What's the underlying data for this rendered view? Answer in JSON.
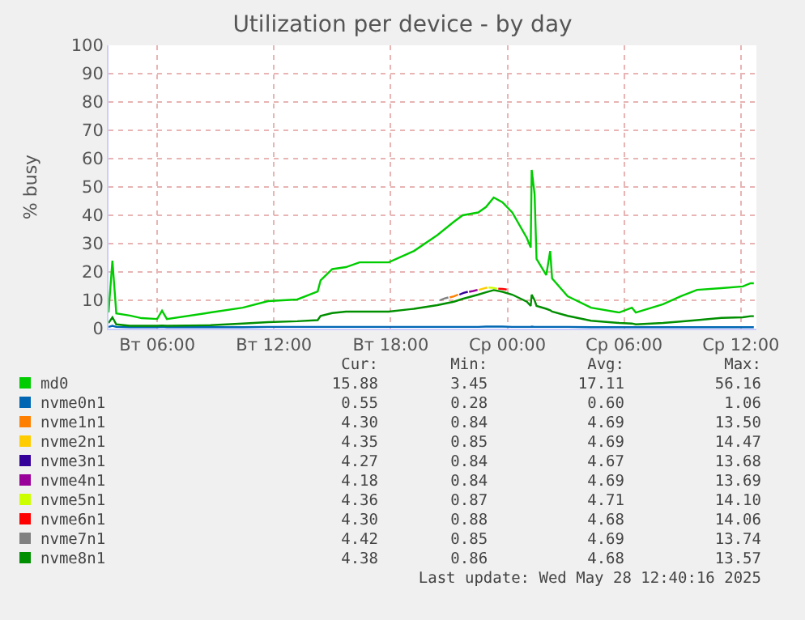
{
  "chart_data": {
    "type": "line",
    "title": "Utilization per device - by day",
    "ylabel": "% busy",
    "xlim": [
      "2025-05-27T03:30",
      "2025-05-28T12:48"
    ],
    "xticks": [
      {
        "value": "2025-05-27T06:00",
        "label": "Вт 06:00"
      },
      {
        "value": "2025-05-27T12:00",
        "label": "Вт 12:00"
      },
      {
        "value": "2025-05-27T18:00",
        "label": "Вт 18:00"
      },
      {
        "value": "2025-05-28T00:00",
        "label": "Ср 00:00"
      },
      {
        "value": "2025-05-28T06:00",
        "label": "Ср 06:00"
      },
      {
        "value": "2025-05-28T12:00",
        "label": "Ср 12:00"
      }
    ],
    "ylim": [
      0,
      100
    ],
    "yticks": [
      0,
      10,
      20,
      30,
      40,
      50,
      60,
      70,
      80,
      90,
      100
    ],
    "grid": true,
    "legend": "bottom",
    "marker": "none",
    "line_style": "solid",
    "x": [
      "2025-05-27T03:30",
      "2025-05-27T03:42",
      "2025-05-27T03:54",
      "2025-05-27T04:36",
      "2025-05-27T05:12",
      "2025-05-27T06:00",
      "2025-05-27T06:15",
      "2025-05-27T06:30",
      "2025-05-27T08:45",
      "2025-05-27T10:24",
      "2025-05-27T11:42",
      "2025-05-27T13:12",
      "2025-05-27T14:15",
      "2025-05-27T14:24",
      "2025-05-27T15:00",
      "2025-05-27T15:42",
      "2025-05-27T16:24",
      "2025-05-27T17:54",
      "2025-05-27T19:12",
      "2025-05-27T20:24",
      "2025-05-27T21:15",
      "2025-05-27T21:42",
      "2025-05-27T22:30",
      "2025-05-27T22:54",
      "2025-05-27T23:18",
      "2025-05-27T23:45",
      "2025-05-28T00:15",
      "2025-05-28T01:00",
      "2025-05-28T01:12",
      "2025-05-28T01:15",
      "2025-05-28T01:24",
      "2025-05-28T01:30",
      "2025-05-28T02:00",
      "2025-05-28T02:12",
      "2025-05-28T02:18",
      "2025-05-28T03:06",
      "2025-05-28T04:18",
      "2025-05-28T05:45",
      "2025-05-28T06:24",
      "2025-05-28T06:36",
      "2025-05-28T08:00",
      "2025-05-28T08:54",
      "2025-05-28T09:45",
      "2025-05-28T11:00",
      "2025-05-28T12:06",
      "2025-05-28T12:30",
      "2025-05-28T12:40"
    ],
    "series": [
      {
        "name": "md0",
        "color": "#00cc00",
        "values": [
          5.7,
          24,
          5.4,
          4.6,
          3.7,
          3.4,
          6.3,
          3.4,
          5.7,
          7.4,
          9.7,
          10.3,
          13.1,
          17,
          21,
          21.7,
          23.4,
          23.4,
          27.4,
          33,
          37.7,
          40,
          41,
          42.9,
          46.3,
          44.6,
          41,
          32,
          28.6,
          56,
          47.4,
          24.6,
          18.9,
          27.4,
          17.7,
          11.4,
          7.4,
          5.7,
          7.4,
          5.7,
          8.6,
          11.4,
          13.7,
          14.3,
          14.9,
          16,
          16
        ]
      },
      {
        "name": "nvme0n1",
        "color": "#0066b3",
        "values": [
          0.6,
          1,
          0.6,
          0.5,
          0.5,
          0.5,
          0.6,
          0.5,
          0.5,
          0.5,
          0.6,
          0.6,
          0.6,
          0.6,
          0.6,
          0.6,
          0.6,
          0.6,
          0.6,
          0.6,
          0.6,
          0.6,
          0.6,
          0.7,
          0.7,
          0.7,
          0.6,
          0.6,
          0.6,
          0.7,
          0.6,
          0.6,
          0.6,
          0.6,
          0.6,
          0.6,
          0.5,
          0.5,
          0.5,
          0.5,
          0.5,
          0.5,
          0.5,
          0.5,
          0.5,
          0.5,
          0.5
        ]
      },
      {
        "name": "nvme1n1",
        "color": "#ff8000",
        "x": [
          "2025-05-27T21:02",
          "2025-05-27T21:15",
          "2025-05-27T21:28"
        ],
        "values": [
          11,
          11.4,
          12
        ]
      },
      {
        "name": "nvme2n1",
        "color": "#ffcc00",
        "x": [
          "2025-05-27T22:32",
          "2025-05-27T22:45",
          "2025-05-27T22:58"
        ],
        "values": [
          13.7,
          14.1,
          14.5
        ]
      },
      {
        "name": "nvme3n1",
        "color": "#330099",
        "x": [
          "2025-05-27T21:32",
          "2025-05-27T21:45",
          "2025-05-27T21:58"
        ],
        "values": [
          12,
          12.6,
          13
        ]
      },
      {
        "name": "nvme4n1",
        "color": "#990099",
        "x": [
          "2025-05-27T22:02",
          "2025-05-27T22:15",
          "2025-05-27T22:28"
        ],
        "values": [
          13,
          13.3,
          13.7
        ]
      },
      {
        "name": "nvme5n1",
        "color": "#ccff00",
        "x": [
          "2025-05-27T23:02",
          "2025-05-27T23:15",
          "2025-05-27T23:28"
        ],
        "values": [
          14.5,
          14.4,
          14.1
        ]
      },
      {
        "name": "nvme6n1",
        "color": "#ff0000",
        "x": [
          "2025-05-27T23:32",
          "2025-05-27T23:45",
          "2025-05-27T23:58"
        ],
        "values": [
          14.1,
          14,
          13.8
        ]
      },
      {
        "name": "nvme7n1",
        "color": "#808080",
        "x": [
          "2025-05-27T20:32",
          "2025-05-27T20:45",
          "2025-05-27T20:58"
        ],
        "values": [
          10,
          10.6,
          11
        ]
      },
      {
        "name": "nvme8n1",
        "color": "#008f00",
        "values": [
          2,
          4,
          1.5,
          1,
          1,
          1,
          1.1,
          1,
          1.2,
          1.8,
          2.3,
          2.6,
          3,
          4.5,
          5.5,
          6,
          6,
          6,
          7,
          8.3,
          9.5,
          10.5,
          12,
          12.8,
          13.6,
          13,
          12,
          9.5,
          8,
          12,
          10,
          8,
          7,
          6.5,
          6,
          4.5,
          2.8,
          2,
          1.8,
          1.5,
          2,
          2.5,
          3,
          3.8,
          4,
          4.4,
          4.4
        ]
      }
    ],
    "annotations": [
      "Cur:",
      "Min:",
      "Avg:",
      "Max:",
      "15.88",
      "3.45",
      "17.11",
      "56.16",
      "0.55",
      "0.28",
      "0.60",
      "1.06",
      "4.30",
      "0.84",
      "4.69",
      "13.50",
      "4.35",
      "0.85",
      "4.69",
      "14.47",
      "4.27",
      "0.84",
      "4.67",
      "13.68",
      "4.18",
      "0.84",
      "4.69",
      "13.69",
      "4.36",
      "0.87",
      "4.71",
      "14.10",
      "4.30",
      "0.88",
      "4.68",
      "14.06",
      "4.42",
      "0.85",
      "4.69",
      "13.74",
      "4.38",
      "0.86",
      "4.68",
      "13.57",
      "Last update: Wed May 28 12:40:16 2025"
    ]
  }
}
